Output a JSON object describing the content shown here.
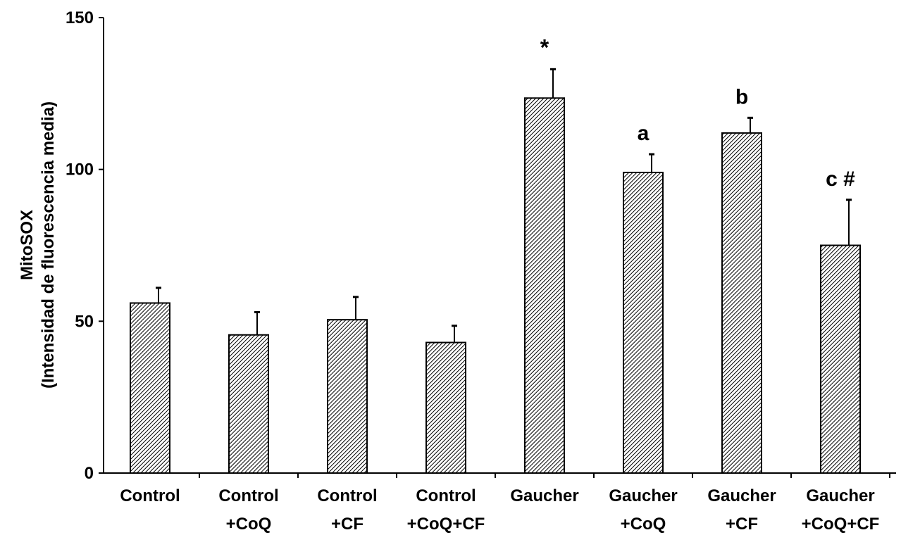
{
  "chart_data": {
    "type": "bar",
    "title": "",
    "ylabel_lines": [
      "MitoSOX",
      "(Intensidad de fluorescencia media)"
    ],
    "xlabel": "",
    "ylim": [
      0,
      150
    ],
    "yticks": [
      0,
      50,
      100,
      150
    ],
    "grid": false,
    "bar_pattern": "diagonal-hatch",
    "bar_color": "#000000",
    "categories": [
      [
        "Control"
      ],
      [
        "Control",
        "+CoQ"
      ],
      [
        "Control",
        "+CF"
      ],
      [
        "Control",
        "+CoQ+CF"
      ],
      [
        "Gaucher"
      ],
      [
        "Gaucher",
        "+CoQ"
      ],
      [
        "Gaucher",
        "+CF"
      ],
      [
        "Gaucher",
        "+CoQ+CF"
      ]
    ],
    "values": [
      56,
      45.5,
      50.5,
      43,
      123.5,
      99,
      112,
      75
    ],
    "errors": [
      5,
      7.5,
      7.5,
      5.5,
      9.5,
      6,
      5,
      15
    ],
    "annotations": [
      {
        "bar": 4,
        "text": "*"
      },
      {
        "bar": 5,
        "text": "a"
      },
      {
        "bar": 6,
        "text": "b"
      },
      {
        "bar": 7,
        "text": "c #"
      }
    ]
  }
}
